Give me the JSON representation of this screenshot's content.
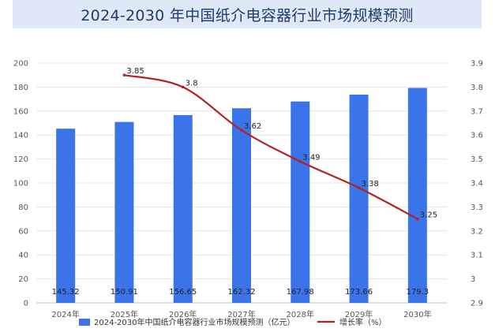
{
  "chart_data": {
    "type": "bar",
    "title": "2024-2030 年中国纸介电容器行业市场规模预测",
    "categories": [
      "2024年",
      "2025年",
      "2026年",
      "2027年",
      "2028年",
      "2029年",
      "2030年"
    ],
    "series": [
      {
        "name": "2024-2030年中国纸介电容器行业市场规模预测（亿元）",
        "type": "bar",
        "axis": "left",
        "color": "#3a74e8",
        "values": [
          145.32,
          150.91,
          156.65,
          162.32,
          167.98,
          173.66,
          179.3
        ],
        "labels": [
          "145.32",
          "150.91",
          "156.65",
          "162.32",
          "167.98",
          "173.66",
          "179.3"
        ]
      },
      {
        "name": "增长率（%）",
        "type": "line",
        "axis": "right",
        "color": "#b22222",
        "values": [
          null,
          3.85,
          3.8,
          3.62,
          3.49,
          3.38,
          3.25
        ],
        "labels": [
          null,
          "3.85",
          "3.8",
          "3.62",
          "3.49",
          "3.38",
          "3.25"
        ]
      }
    ],
    "y_left": {
      "min": 0,
      "max": 200,
      "step": 20,
      "ticks": [
        "0",
        "20",
        "40",
        "60",
        "80",
        "100",
        "120",
        "140",
        "160",
        "180",
        "200"
      ]
    },
    "y_right": {
      "min": 2.9,
      "max": 3.9,
      "step": 0.1,
      "ticks": [
        "2.9",
        "3",
        "3.1",
        "3.2",
        "3.3",
        "3.4",
        "3.5",
        "3.6",
        "3.7",
        "3.8",
        "3.9"
      ]
    },
    "grid": true,
    "legend": "bottom"
  }
}
